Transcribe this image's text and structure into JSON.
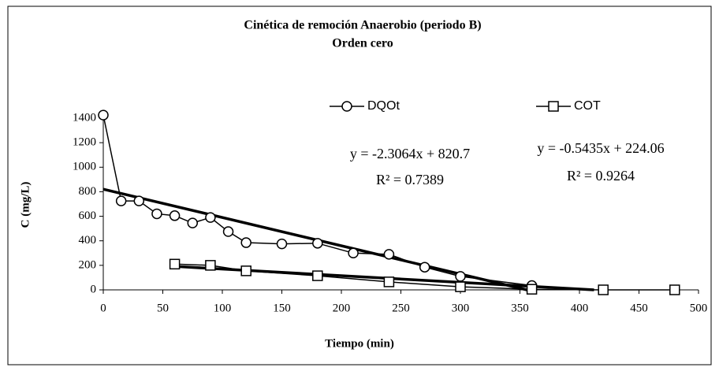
{
  "chart_data": {
    "type": "line",
    "title": "Cinética de remoción Anaerobio (periodo B)",
    "subtitle": "Orden cero",
    "x_label": "Tiempo (min)",
    "y_label": "C (mg/L)",
    "xlim": [
      0,
      500
    ],
    "xticks": [
      0,
      50,
      100,
      150,
      200,
      250,
      300,
      350,
      400,
      450,
      500
    ],
    "ylim": [
      0,
      1400
    ],
    "yticks": [
      0,
      200,
      400,
      600,
      800,
      1000,
      1200,
      1400
    ],
    "series": [
      {
        "name": "DQOt",
        "color": "#000000",
        "marker": "circle",
        "x": [
          0,
          15,
          30,
          45,
          60,
          75,
          90,
          105,
          120,
          150,
          180,
          210,
          240,
          270,
          300,
          360
        ],
        "values": [
          1425,
          725,
          725,
          620,
          605,
          545,
          590,
          475,
          385,
          375,
          380,
          300,
          290,
          185,
          110,
          35
        ],
        "trendline": {
          "slope": -2.3064,
          "intercept": 820.7
        }
      },
      {
        "name": "COT",
        "color": "#000000",
        "marker": "square",
        "x": [
          60,
          90,
          120,
          180,
          240,
          300,
          360,
          420,
          480
        ],
        "values": [
          210,
          200,
          155,
          115,
          65,
          25,
          5,
          0,
          0
        ],
        "trendline": {
          "slope": -0.5435,
          "intercept": 224.06
        }
      }
    ],
    "annotations": [
      {
        "text": "y = -2.3064x + 820.7"
      },
      {
        "text": "R² = 0.7389"
      },
      {
        "text": "y = -0.5435x + 224.06"
      },
      {
        "text": "R² = 0.9264"
      }
    ],
    "legend": "top"
  }
}
